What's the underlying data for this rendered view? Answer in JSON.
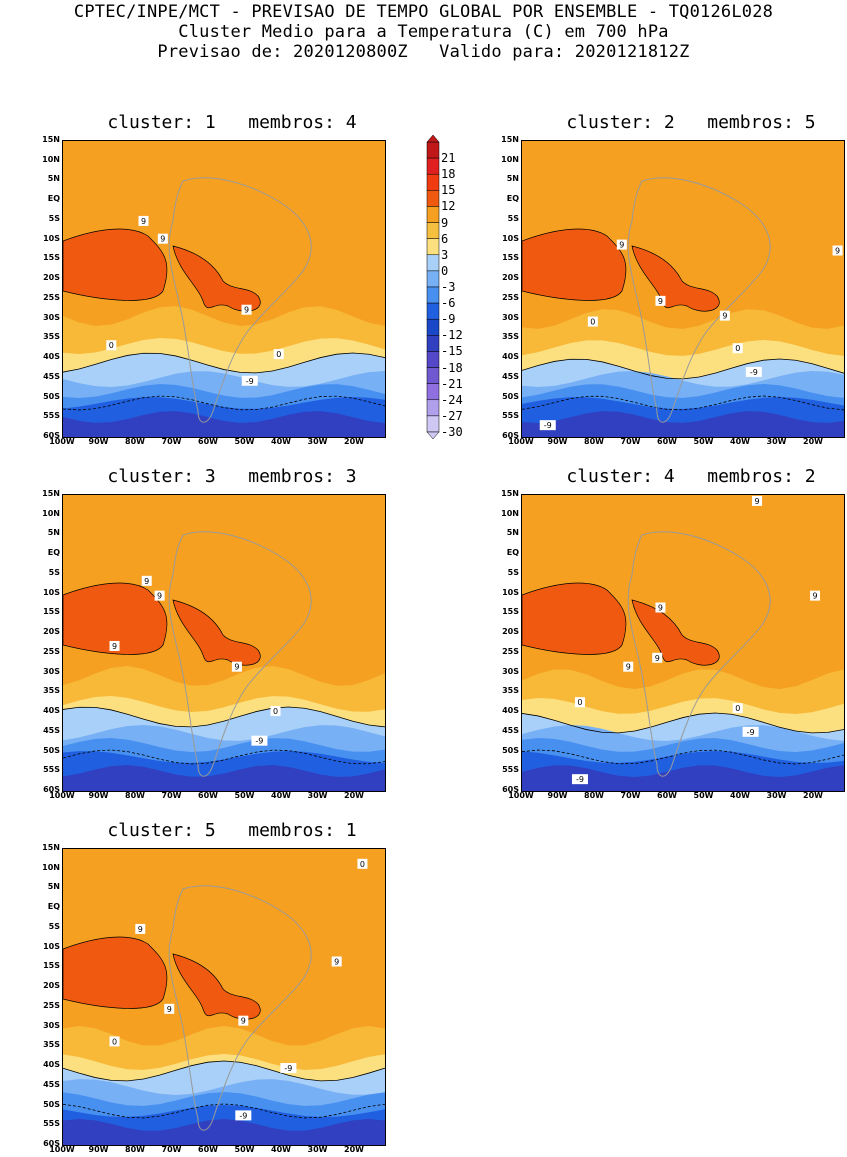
{
  "header": {
    "line1": "CPTEC/INPE/MCT - PREVISAO DE TEMPO GLOBAL POR ENSEMBLE - TQ0126L028",
    "line2": "Cluster Medio para a Temperatura (C) em 700 hPa",
    "line3": "Previsao de: 2020120800Z   Valido para: 2020121812Z"
  },
  "lat_labels": [
    "15N",
    "10N",
    "5N",
    "EQ",
    "5S",
    "10S",
    "15S",
    "20S",
    "25S",
    "30S",
    "35S",
    "40S",
    "45S",
    "50S",
    "55S",
    "60S"
  ],
  "lon_labels": [
    "100W",
    "90W",
    "80W",
    "70W",
    "60W",
    "50W",
    "40W",
    "30W",
    "20W"
  ],
  "colorbar": {
    "levels": [
      "21",
      "18",
      "15",
      "12",
      "9",
      "6",
      "3",
      "0",
      "-3",
      "-6",
      "-9",
      "-12",
      "-15",
      "-18",
      "-21",
      "-24",
      "-27",
      "-30"
    ],
    "colors": [
      "#c01818",
      "#e02020",
      "#f03a10",
      "#f05a10",
      "#f5a020",
      "#f5c040",
      "#fce080",
      "#a8d0f8",
      "#78b0f5",
      "#4890f0",
      "#2060e0",
      "#1a48c8",
      "#3040c0",
      "#5548c8",
      "#7058d0",
      "#9070e0",
      "#b0a0ec",
      "#d0c8f4"
    ]
  },
  "panels": [
    {
      "title": "cluster: 1   membros: 4",
      "labels": [
        "9",
        "9",
        "9",
        "0",
        "0",
        "-9"
      ]
    },
    {
      "title": "cluster: 2   membros: 5",
      "labels": [
        "9",
        "9",
        "9",
        "9",
        "0",
        "0",
        "-9",
        "-9"
      ]
    },
    {
      "title": "cluster: 3   membros: 3",
      "labels": [
        "9",
        "9",
        "9",
        "9",
        "0",
        "-9"
      ]
    },
    {
      "title": "cluster: 4   membros: 2",
      "labels": [
        "9",
        "9",
        "9",
        "9",
        "9",
        "0",
        "0",
        "-9",
        "-9"
      ]
    },
    {
      "title": "cluster: 5   membros: 1",
      "labels": [
        "9",
        "9",
        "9",
        "9",
        "0",
        "0",
        "-9",
        "-9"
      ]
    }
  ]
}
